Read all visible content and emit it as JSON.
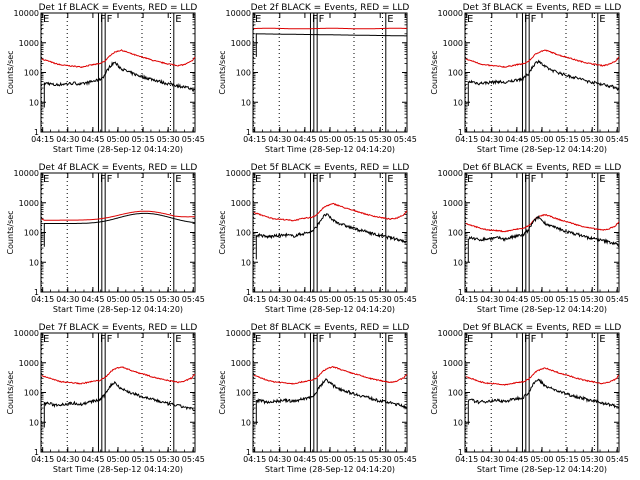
{
  "figure": {
    "panels": [
      {
        "title": "Det 1f BLACK = Events, RED = LLD",
        "ylabel": "Counts/sec",
        "xlabel": "Start Time (28-Sep-12 04:14:20)"
      },
      {
        "title": "Det 2f BLACK = Events, RED = LLD",
        "ylabel": "Counts/sec",
        "xlabel": "Start Time (28-Sep-12 04:14:20)"
      },
      {
        "title": "Det 3f BLACK = Events, RED = LLD",
        "ylabel": "Counts/sec",
        "xlabel": "Start Time (28-Sep-12 04:14:20)"
      },
      {
        "title": "Det 4f BLACK = Events, RED = LLD",
        "ylabel": "Counts/sec",
        "xlabel": "Start Time (28-Sep-12 04:14:20)"
      },
      {
        "title": "Det 5f BLACK = Events, RED = LLD",
        "ylabel": "Counts/sec",
        "xlabel": "Start Time (28-Sep-12 04:14:20)"
      },
      {
        "title": "Det 6f BLACK = Events, RED = LLD",
        "ylabel": "Counts/sec",
        "xlabel": "Start Time (28-Sep-12 04:14:20)"
      },
      {
        "title": "Det 7f BLACK = Events, RED = LLD",
        "ylabel": "Counts/sec",
        "xlabel": "Start Time (28-Sep-12 04:14:20)"
      },
      {
        "title": "Det 8f BLACK = Events, RED = LLD",
        "ylabel": "Counts/sec",
        "xlabel": "Start Time (28-Sep-12 04:14:20)"
      },
      {
        "title": "Det 9f BLACK = Events, RED = LLD",
        "ylabel": "Counts/sec",
        "xlabel": "Start Time (28-Sep-12 04:14:20)"
      }
    ]
  },
  "chart_data": {
    "type": "line",
    "layout": "3x3 grid",
    "x_axis": {
      "ticks": [
        "04:15",
        "04:30",
        "04:45",
        "05:00",
        "05:15",
        "05:30",
        "05:45"
      ],
      "range_minutes": [
        0,
        92
      ]
    },
    "y_axis": {
      "scale": "log",
      "ticks": [
        "1",
        "10",
        "100",
        "1000",
        "10000"
      ],
      "range": [
        1,
        10000
      ]
    },
    "grid": false,
    "colors": {
      "events": "#000000",
      "lld": "#dd0000"
    },
    "markers": [
      {
        "label": "E",
        "time": "04:14:20",
        "line": "dotted"
      },
      {
        "label": "",
        "time": "04:29:40",
        "line": "dotted"
      },
      {
        "label": "F",
        "time": "04:48:20",
        "line": "solid"
      },
      {
        "label": "",
        "time": "04:50:20",
        "line": "solid"
      },
      {
        "label": "F",
        "time": "04:52:20",
        "line": "solid"
      },
      {
        "label": "",
        "time": "05:14:20",
        "line": "dotted"
      },
      {
        "label": "E",
        "time": "05:33:20",
        "line": "solid"
      },
      {
        "label": "",
        "time": "05:31:20",
        "line": "dotted"
      }
    ],
    "profiles": {
      "x": [
        "04:14",
        "04:18",
        "04:22",
        "04:26",
        "04:30",
        "04:34",
        "04:38",
        "04:42",
        "04:46",
        "04:49",
        "04:52",
        "04:54",
        "04:56",
        "04:58",
        "05:00",
        "05:02",
        "05:05",
        "05:08",
        "05:12",
        "05:16",
        "05:20",
        "05:24",
        "05:28",
        "05:32",
        "05:36",
        "05:40",
        "05:44",
        "05:46"
      ],
      "lld_rel": [
        1.7,
        1.45,
        1.2,
        1.05,
        1.0,
        0.95,
        0.9,
        1.0,
        1.1,
        1.15,
        1.4,
        1.8,
        2.4,
        2.8,
        3.1,
        3.3,
        2.9,
        2.5,
        2.1,
        1.85,
        1.55,
        1.35,
        1.2,
        1.1,
        1.0,
        1.1,
        1.4,
        1.9
      ],
      "events_rel": [
        1.0,
        1.1,
        0.95,
        1.0,
        1.05,
        1.1,
        1.0,
        1.15,
        1.3,
        1.4,
        2.0,
        3.2,
        4.5,
        5.5,
        4.2,
        3.4,
        2.8,
        2.4,
        2.0,
        1.7,
        1.5,
        1.3,
        1.1,
        1.0,
        0.9,
        0.8,
        0.7,
        0.6
      ]
    },
    "series_note": "Per panel: events (black) and LLD (red) count rates in counts/sec vs time",
    "panels": [
      {
        "detector": "1f",
        "lld_base": 170,
        "events_base": 40,
        "events_start": "04:16"
      },
      {
        "detector": "2f",
        "lld_base": 3000,
        "events_base": 2000,
        "events_start": "04:16",
        "flat": true
      },
      {
        "detector": "3f",
        "lld_base": 170,
        "events_base": 45,
        "events_start": "04:16"
      },
      {
        "detector": "4f",
        "lld_base": 260,
        "events_base": 200,
        "events_start": "04:16",
        "smooth": true
      },
      {
        "detector": "5f",
        "lld_base": 280,
        "events_base": 75,
        "events_start": "04:16"
      },
      {
        "detector": "6f",
        "lld_base": 120,
        "events_base": 60,
        "events_start": "04:16"
      },
      {
        "detector": "7f",
        "lld_base": 220,
        "events_base": 40,
        "events_start": "04:16"
      },
      {
        "detector": "8f",
        "lld_base": 220,
        "events_base": 50,
        "events_start": "04:16"
      },
      {
        "detector": "9f",
        "lld_base": 200,
        "events_base": 50,
        "events_start": "04:16"
      }
    ]
  }
}
